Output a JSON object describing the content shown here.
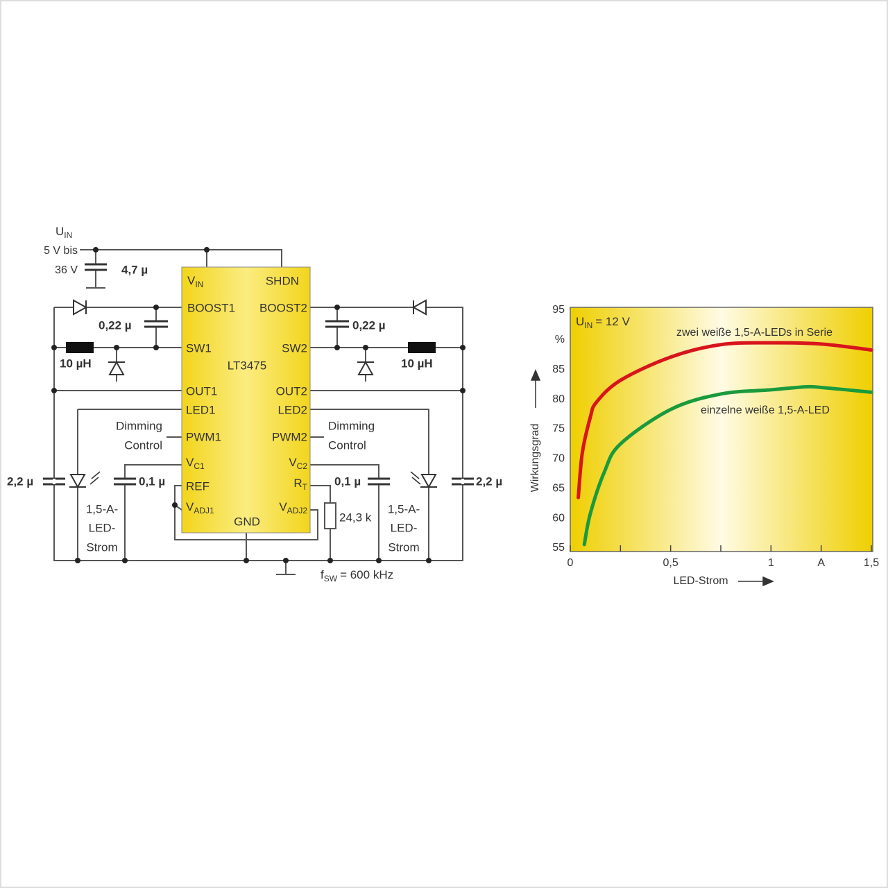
{
  "diagram": {
    "supply": {
      "u": "U",
      "u_sub": "IN",
      "range1": "5 V bis",
      "range2": "36 V",
      "cap": "4,7 µ"
    },
    "ic": {
      "name": "LT3475",
      "pins": {
        "vin": {
          "main": "V",
          "sub": "IN"
        },
        "shdn": "SHDN",
        "boost1": "BOOST1",
        "boost2": "BOOST2",
        "sw1": "SW1",
        "sw2": "SW2",
        "out1": "OUT1",
        "out2": "OUT2",
        "led1": "LED1",
        "led2": "LED2",
        "pwm1": "PWM1",
        "pwm2": "PWM2",
        "vc1": {
          "main": "V",
          "sub": "C1"
        },
        "vc2": {
          "main": "V",
          "sub": "C2"
        },
        "ref": "REF",
        "rt": {
          "main": "R",
          "sub": "T"
        },
        "vadj1": {
          "main": "V",
          "sub": "ADJ1"
        },
        "vadj2": {
          "main": "V",
          "sub": "ADJ2"
        },
        "gnd": "GND"
      }
    },
    "left": {
      "boost_cap": "0,22 µ",
      "inductor": "10 µH",
      "dimming": "Dimming",
      "control": "Control",
      "out_cap": "2,2 µ",
      "vc_cap": "0,1 µ",
      "led": [
        "1,5-A-",
        "LED-",
        "Strom"
      ]
    },
    "right": {
      "boost_cap": "0,22 µ",
      "inductor": "10 µH",
      "dimming": "Dimming",
      "control": "Control",
      "out_cap": "2,2 µ",
      "vc_cap": "0,1 µ",
      "resistor": "24,3 k",
      "led": [
        "1,5-A-",
        "LED-",
        "Strom"
      ]
    },
    "frequency": {
      "f": "f",
      "sub": "SW",
      "rest": "= 600 kHz"
    }
  },
  "chart_data": {
    "type": "line",
    "annotation": {
      "main": "U",
      "sub": "IN",
      "rest": "= 12 V"
    },
    "xlabel": "LED-Strom",
    "ylabel": "Wirkungsgrad",
    "xlim": [
      0,
      1.5
    ],
    "ylim": [
      55,
      95
    ],
    "xticks": [
      0,
      {
        "value": 0.25,
        "label": null
      },
      {
        "value": 0.5,
        "label": "0,5"
      },
      {
        "value": 0.75,
        "label": null
      },
      1,
      {
        "value": 1.25,
        "label": "A"
      },
      {
        "value": 1.5,
        "label": "1,5"
      }
    ],
    "yticks": [
      95,
      {
        "value": 90,
        "label": "%"
      },
      85,
      80,
      75,
      70,
      65,
      60,
      55
    ],
    "series": [
      {
        "name": "zwei weiße 1,5-A-LEDs in Serie",
        "color": "#d8141c",
        "x": [
          0.04,
          0.06,
          0.1,
          0.13,
          0.25,
          0.5,
          0.75,
          1,
          1.25,
          1.5
        ],
        "values": [
          63.5,
          71,
          77,
          79.5,
          83.2,
          87.1,
          89.2,
          89.5,
          89.3,
          88.3
        ]
      },
      {
        "name": "einzelne weiße 1,5-A-LED",
        "color": "#1a9a3c",
        "x": [
          0.07,
          0.1,
          0.17,
          0.25,
          0.5,
          0.75,
          1,
          1.17,
          1.25,
          1.5
        ],
        "values": [
          55.6,
          60.8,
          67.8,
          72.5,
          78.3,
          80.9,
          81.6,
          82.1,
          82,
          81.2
        ]
      }
    ]
  }
}
